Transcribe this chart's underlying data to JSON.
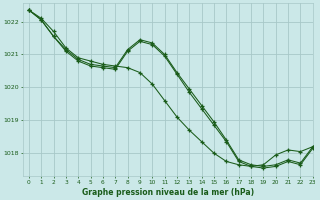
{
  "title": "Graphe pression niveau de la mer (hPa)",
  "background_color": "#cbe8e8",
  "grid_color": "#a8c8c8",
  "line_color": "#1a5c1a",
  "xlim": [
    -0.5,
    23
  ],
  "ylim": [
    1017.3,
    1022.55
  ],
  "yticks": [
    1018,
    1019,
    1020,
    1021,
    1022
  ],
  "xticks": [
    0,
    1,
    2,
    3,
    4,
    5,
    6,
    7,
    8,
    9,
    10,
    11,
    12,
    13,
    14,
    15,
    16,
    17,
    18,
    19,
    20,
    21,
    22,
    23
  ],
  "series1_x": [
    0,
    1,
    2,
    3,
    4,
    5,
    6,
    7,
    8,
    9,
    10,
    11,
    12,
    13,
    14,
    15,
    16,
    17,
    18,
    19,
    20,
    21,
    22,
    23
  ],
  "series1_y": [
    1022.35,
    1022.1,
    1021.7,
    1021.2,
    1020.9,
    1020.8,
    1020.7,
    1020.65,
    1020.6,
    1020.45,
    1020.1,
    1019.6,
    1019.1,
    1018.7,
    1018.35,
    1018.0,
    1017.75,
    1017.65,
    1017.6,
    1017.65,
    1017.95,
    1018.1,
    1018.05,
    1018.2
  ],
  "series2_x": [
    0,
    1,
    2,
    3,
    4,
    5,
    6,
    7,
    8,
    9,
    10,
    11,
    12,
    13,
    14,
    15,
    16,
    17,
    18,
    19,
    20,
    21,
    22,
    23
  ],
  "series2_y": [
    1022.35,
    1022.05,
    1021.55,
    1021.15,
    1020.85,
    1020.7,
    1020.65,
    1020.6,
    1021.15,
    1021.45,
    1021.35,
    1021.0,
    1020.45,
    1019.95,
    1019.45,
    1018.95,
    1018.4,
    1017.8,
    1017.65,
    1017.6,
    1017.65,
    1017.8,
    1017.7,
    1018.2
  ],
  "series3_x": [
    0,
    1,
    2,
    3,
    4,
    5,
    6,
    7,
    8,
    9,
    10,
    11,
    12,
    13,
    14,
    15,
    16,
    17,
    18,
    19,
    20,
    21,
    22,
    23
  ],
  "series3_y": [
    1022.35,
    1022.05,
    1021.55,
    1021.1,
    1020.8,
    1020.65,
    1020.6,
    1020.55,
    1021.1,
    1021.4,
    1021.3,
    1020.95,
    1020.4,
    1019.85,
    1019.35,
    1018.85,
    1018.35,
    1017.75,
    1017.6,
    1017.55,
    1017.6,
    1017.75,
    1017.65,
    1018.15
  ]
}
